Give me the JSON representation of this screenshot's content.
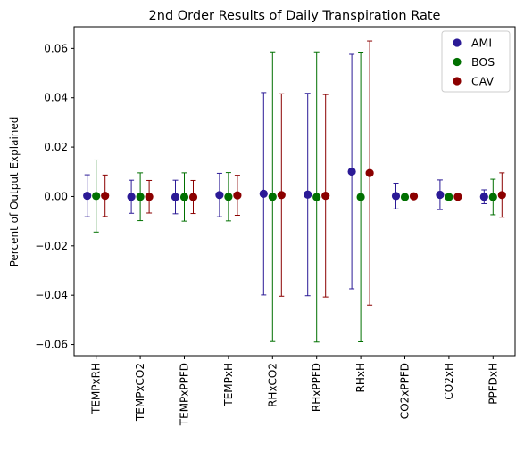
{
  "chart_data": {
    "type": "scatter",
    "title": "2nd Order Results of Daily Transpiration Rate",
    "xlabel": "",
    "ylabel": "Percent of Output Explained",
    "categories": [
      "TEMPxRH",
      "TEMPxCO2",
      "TEMPxPPFD",
      "TEMPxH",
      "RHxCO2",
      "RHxPPFD",
      "RHxH",
      "CO2xPPFD",
      "CO2xH",
      "PPFDxH"
    ],
    "ylim": [
      -0.0645,
      0.0688
    ],
    "yticks": [
      -0.06,
      -0.04,
      -0.02,
      0.0,
      0.02,
      0.04,
      0.06
    ],
    "ytick_labels": [
      "−0.06",
      "−0.04",
      "−0.02",
      "0.00",
      "0.02",
      "0.04",
      "0.06"
    ],
    "grid": false,
    "legend_position": "top-right",
    "series": [
      {
        "name": "AMI",
        "color": "#2b1a96",
        "values": [
          0.0003,
          -0.0001,
          -0.0002,
          0.0006,
          0.0011,
          0.0008,
          0.0101,
          0.0002,
          0.0007,
          -0.0001
        ],
        "errors": [
          0.0085,
          0.0067,
          0.0068,
          0.0088,
          0.041,
          0.041,
          0.0475,
          0.0052,
          0.006,
          0.0028
        ]
      },
      {
        "name": "BOS",
        "color": "#007000",
        "values": [
          0.0002,
          -0.0001,
          -0.0002,
          -0.0001,
          -0.0001,
          -0.0002,
          -0.0002,
          -0.0002,
          -0.0002,
          -0.0002
        ],
        "errors": [
          0.0146,
          0.0097,
          0.0098,
          0.0098,
          0.0587,
          0.0588,
          0.0587,
          0.0001,
          0.0001,
          0.0072
        ]
      },
      {
        "name": "CAV",
        "color": "#8b0000",
        "values": [
          0.0003,
          -0.0001,
          -0.0002,
          0.0005,
          0.0006,
          0.0003,
          0.0095,
          0.0001,
          -0.0001,
          0.0006
        ],
        "errors": [
          0.0084,
          0.0066,
          0.0067,
          0.0081,
          0.041,
          0.041,
          0.0535,
          0.0001,
          0.0001,
          0.009
        ]
      }
    ]
  }
}
